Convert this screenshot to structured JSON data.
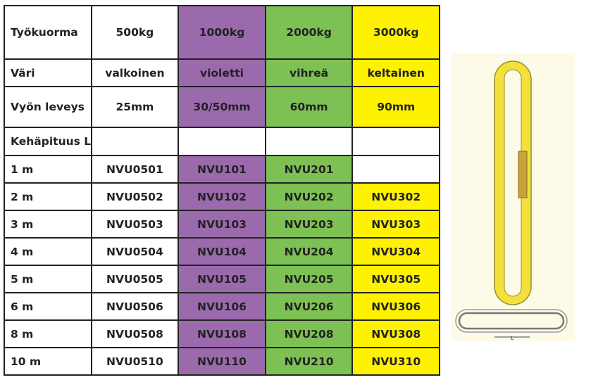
{
  "header": {
    "rows": [
      [
        "Työkuorma",
        "500kg",
        "1000kg",
        "2000kg",
        "3000kg"
      ],
      [
        "Väri",
        "valkoinen",
        "violetti",
        "vihreä",
        "keltainen"
      ],
      [
        "Vyön leveys",
        "25mm",
        "30/50mm",
        "60mm",
        "90mm"
      ],
      [
        "Kehäpituus L",
        "",
        "",
        "",
        ""
      ]
    ]
  },
  "rows": [
    [
      "1 m",
      "NVU0501",
      "NVU101",
      "NVU201",
      ""
    ],
    [
      "2 m",
      "NVU0502",
      "NVU102",
      "NVU202",
      "NVU302"
    ],
    [
      "3 m",
      "NVU0503",
      "NVU103",
      "NVU203",
      "NVU303"
    ],
    [
      "4 m",
      "NVU0504",
      "NVU104",
      "NVU204",
      "NVU304"
    ],
    [
      "5 m",
      "NVU0505",
      "NVU105",
      "NVU205",
      "NVU305"
    ],
    [
      "6 m",
      "NVU0506",
      "NVU106",
      "NVU206",
      "NVU306"
    ],
    [
      "8 m",
      "NVU0508",
      "NVU108",
      "NVU208",
      "NVU308"
    ],
    [
      "10 m",
      "NVU0510",
      "NVU110",
      "NVU210",
      "NVU310"
    ]
  ],
  "colors": {
    "violetti": "#9b6aad",
    "vihreä": "#7dc154",
    "keltainen": "#fff200"
  },
  "illustration": {
    "label": "L"
  }
}
